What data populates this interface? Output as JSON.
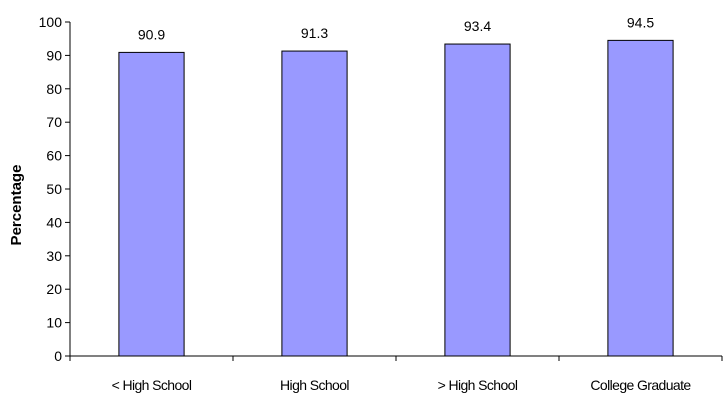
{
  "chart_data": {
    "type": "bar",
    "title": "",
    "xlabel": "",
    "ylabel": "Percentage",
    "categories": [
      "< High School",
      "High School",
      "> High School",
      "College Graduate"
    ],
    "values": [
      90.9,
      91.3,
      93.4,
      94.5
    ],
    "data_labels": [
      "90.9",
      "91.3",
      "93.4",
      "94.5"
    ],
    "ylim": [
      0,
      100
    ],
    "yticks": [
      0,
      10,
      20,
      30,
      40,
      50,
      60,
      70,
      80,
      90,
      100
    ],
    "grid": false,
    "legend": "none",
    "colors": {
      "bar_fill": "#9999ff",
      "bar_stroke": "#000000",
      "axis": "#000000"
    }
  }
}
